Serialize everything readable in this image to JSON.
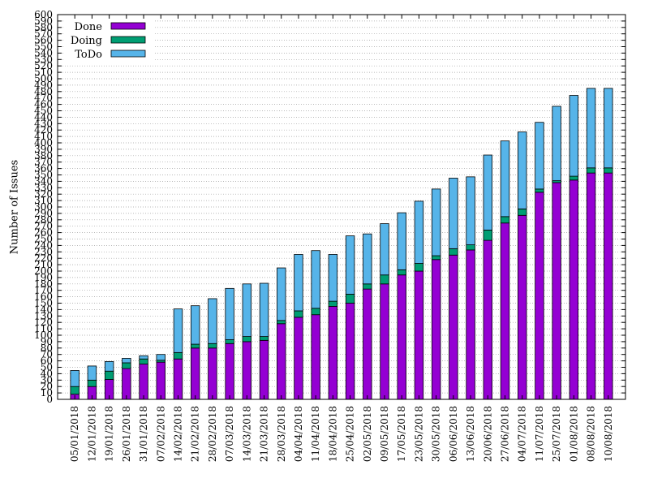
{
  "chart_data": {
    "type": "bar",
    "stacked": true,
    "title": "",
    "xlabel": "",
    "ylabel": "Number of Issues",
    "ylim": [
      0,
      600
    ],
    "ytick_step": 10,
    "grid": "horizontal dotted",
    "legend_position": "top-left",
    "categories": [
      "05/01/2018",
      "12/01/2018",
      "19/01/2018",
      "26/01/2018",
      "31/01/2018",
      "07/02/2018",
      "14/02/2018",
      "21/02/2018",
      "28/02/2018",
      "07/03/2018",
      "14/03/2018",
      "21/03/2018",
      "28/03/2018",
      "04/04/2018",
      "11/04/2018",
      "18/04/2018",
      "25/04/2018",
      "02/05/2018",
      "09/05/2018",
      "17/05/2018",
      "23/05/2018",
      "30/05/2018",
      "06/06/2018",
      "13/06/2018",
      "20/06/2018",
      "27/06/2018",
      "04/07/2018",
      "11/07/2018",
      "25/07/2018",
      "01/08/2018",
      "08/08/2018",
      "10/08/2018"
    ],
    "series": [
      {
        "name": "Done",
        "color": "#9400d3",
        "values": [
          8,
          20,
          31,
          48,
          55,
          58,
          63,
          80,
          80,
          87,
          90,
          92,
          118,
          128,
          132,
          145,
          150,
          172,
          180,
          194,
          200,
          218,
          225,
          233,
          248,
          275,
          287,
          323,
          338,
          342,
          353,
          353
        ]
      },
      {
        "name": "Doing",
        "color": "#009e73",
        "values": [
          12,
          10,
          13,
          9,
          8,
          3,
          10,
          6,
          7,
          6,
          8,
          6,
          5,
          10,
          10,
          8,
          14,
          8,
          14,
          8,
          12,
          6,
          10,
          8,
          16,
          10,
          10,
          5,
          3,
          6,
          8,
          8
        ]
      },
      {
        "name": "ToDo",
        "color": "#56b4e9",
        "values": [
          25,
          22,
          15,
          7,
          5,
          9,
          68,
          60,
          70,
          80,
          82,
          83,
          82,
          88,
          90,
          73,
          91,
          78,
          80,
          89,
          97,
          104,
          110,
          106,
          117,
          118,
          120,
          104,
          116,
          126,
          124,
          124
        ]
      }
    ]
  }
}
